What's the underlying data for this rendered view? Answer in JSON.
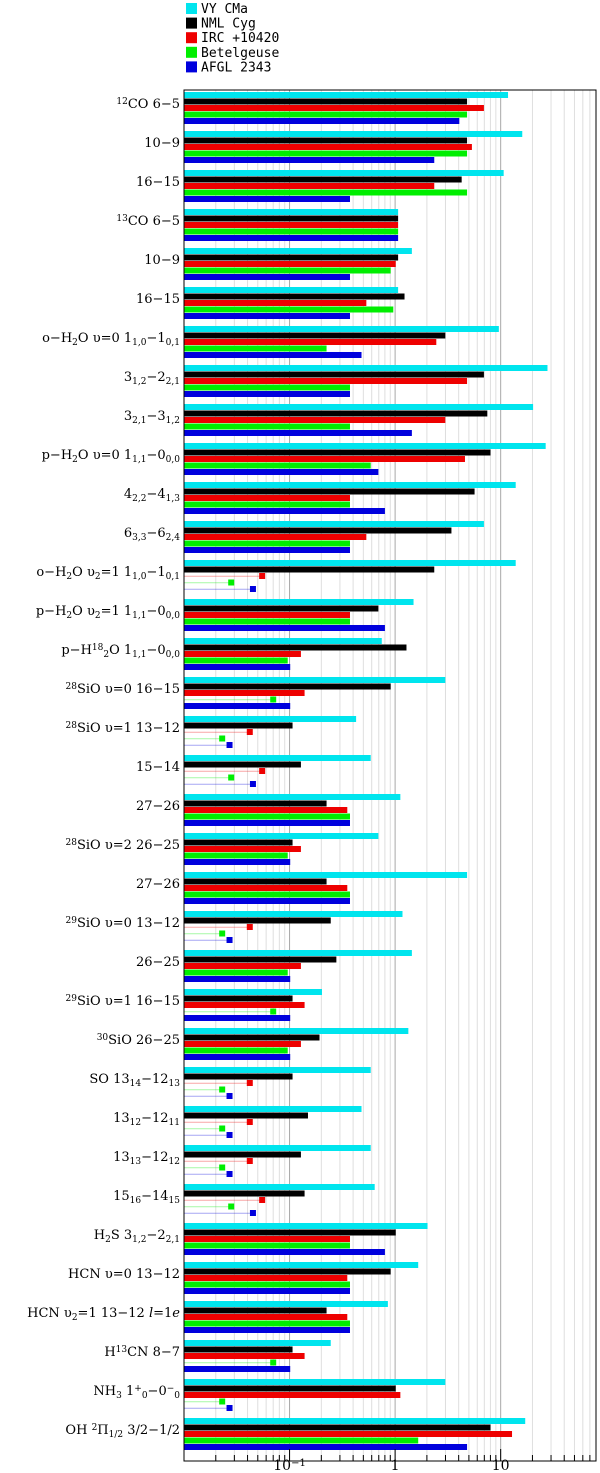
{
  "chart_data": {
    "type": "bar",
    "orientation": "horizontal",
    "x_scale": "log",
    "xlim": [
      0.01,
      80
    ],
    "x_ticks": [
      {
        "value": 0.1,
        "base": "10",
        "exp": "−1"
      },
      {
        "value": 1,
        "base": "1",
        "exp": ""
      },
      {
        "value": 10,
        "base": "10",
        "exp": ""
      }
    ],
    "legend": [
      {
        "name": "VY CMa",
        "color": "#00e5ee"
      },
      {
        "name": "NML Cyg",
        "color": "#000000"
      },
      {
        "name": "IRC +10420",
        "color": "#ee0000"
      },
      {
        "name": "Betelgeuse",
        "color": "#00ee00"
      },
      {
        "name": "AFGL 2343",
        "color": "#0000dd"
      }
    ],
    "categories": [
      {
        "label": [
          {
            "t": "12",
            "s": "sup"
          },
          {
            "t": "CO 6−5"
          }
        ],
        "vy": 11,
        "nml": 4.5,
        "irc": 6.5,
        "bet": 4.5,
        "afgl": 3.8
      },
      {
        "label": [
          {
            "t": "10−9"
          }
        ],
        "vy": 15,
        "nml": 4.5,
        "irc": 5,
        "bet": 4.5,
        "afgl": 2.2
      },
      {
        "label": [
          {
            "t": "16−15"
          }
        ],
        "vy": 10,
        "nml": 4,
        "irc": 2.2,
        "bet": 4.5,
        "afgl": 0.35
      },
      {
        "label": [
          {
            "t": "13",
            "s": "sup"
          },
          {
            "t": "CO 6−5"
          }
        ],
        "vy": 1.0,
        "nml": 1.0,
        "irc": 1.0,
        "bet": 1.0,
        "afgl": 1.0
      },
      {
        "label": [
          {
            "t": "10−9"
          }
        ],
        "vy": 1.35,
        "nml": 1.0,
        "irc": 0.95,
        "bet": 0.85,
        "afgl": 0.35
      },
      {
        "label": [
          {
            "t": "16−15"
          }
        ],
        "vy": 1.0,
        "nml": 1.15,
        "irc": 0.5,
        "bet": 0.9,
        "afgl": 0.35
      },
      {
        "label": [
          {
            "t": "o−H"
          },
          {
            "t": "2",
            "s": "sub"
          },
          {
            "t": "O υ=0 1"
          },
          {
            "t": "1,0",
            "s": "sub"
          },
          {
            "t": "−1"
          },
          {
            "t": "0,1",
            "s": "sub"
          }
        ],
        "vy": 9,
        "nml": 2.8,
        "irc": 2.3,
        "bet": 0.21,
        "afgl": 0.45
      },
      {
        "label": [
          {
            "t": "3"
          },
          {
            "t": "1,2",
            "s": "sub"
          },
          {
            "t": "−2"
          },
          {
            "t": "2,1",
            "s": "sub"
          }
        ],
        "vy": 26,
        "nml": 6.5,
        "irc": 4.5,
        "bet": 0.35,
        "afgl": 0.35
      },
      {
        "label": [
          {
            "t": "3"
          },
          {
            "t": "2,1",
            "s": "sub"
          },
          {
            "t": "−3"
          },
          {
            "t": "1,2",
            "s": "sub"
          }
        ],
        "vy": 19,
        "nml": 7,
        "irc": 2.8,
        "bet": 0.35,
        "afgl": 1.35
      },
      {
        "label": [
          {
            "t": "p−H"
          },
          {
            "t": "2",
            "s": "sub"
          },
          {
            "t": "O υ=0 1"
          },
          {
            "t": "1,1",
            "s": "sub"
          },
          {
            "t": "−0"
          },
          {
            "t": "0,0",
            "s": "sub"
          }
        ],
        "vy": 25,
        "nml": 7.5,
        "irc": 4.3,
        "bet": 0.55,
        "afgl": 0.65
      },
      {
        "label": [
          {
            "t": "4"
          },
          {
            "t": "2,2",
            "s": "sub"
          },
          {
            "t": "−4"
          },
          {
            "t": "1,3",
            "s": "sub"
          }
        ],
        "vy": 13,
        "nml": 5.3,
        "irc": 0.35,
        "bet": 0.35,
        "afgl": 0.75
      },
      {
        "label": [
          {
            "t": "6"
          },
          {
            "t": "3,3",
            "s": "sub"
          },
          {
            "t": "−6"
          },
          {
            "t": "2,4",
            "s": "sub"
          }
        ],
        "vy": 6.5,
        "nml": 3.2,
        "irc": 0.5,
        "bet": 0.35,
        "afgl": 0.35
      },
      {
        "label": [
          {
            "t": "o−H"
          },
          {
            "t": "2",
            "s": "sub"
          },
          {
            "t": "O υ"
          },
          {
            "t": "2",
            "s": "sub"
          },
          {
            "t": "=1 1"
          },
          {
            "t": "1,0",
            "s": "sub"
          },
          {
            "t": "−1"
          },
          {
            "t": "0,1",
            "s": "sub"
          }
        ],
        "vy": 13,
        "nml": 2.2,
        "irc": 0.055,
        "bet": 0.028,
        "afgl": 0.045
      },
      {
        "label": [
          {
            "t": "p−H"
          },
          {
            "t": "2",
            "s": "sub"
          },
          {
            "t": "O υ"
          },
          {
            "t": "2",
            "s": "sub"
          },
          {
            "t": "=1 1"
          },
          {
            "t": "1,1",
            "s": "sub"
          },
          {
            "t": "−0"
          },
          {
            "t": "0,0",
            "s": "sub"
          }
        ],
        "vy": 1.4,
        "nml": 0.65,
        "irc": 0.35,
        "bet": 0.35,
        "afgl": 0.75
      },
      {
        "label": [
          {
            "t": "p−H"
          },
          {
            "t": "18",
            "s": "sup"
          },
          {
            "t": "2",
            "s": "sub2"
          },
          {
            "t": "O 1"
          },
          {
            "t": "1,1",
            "s": "sub"
          },
          {
            "t": "−0"
          },
          {
            "t": "0,0",
            "s": "sub"
          }
        ],
        "vy": 0.7,
        "nml": 1.2,
        "irc": 0.12,
        "bet": 0.09,
        "afgl": 0.095
      },
      {
        "label": [
          {
            "t": "28",
            "s": "sup"
          },
          {
            "t": "SiO υ=0 16−15"
          }
        ],
        "vy": 2.8,
        "nml": 0.85,
        "irc": 0.13,
        "bet": 0.07,
        "afgl": 0.095
      },
      {
        "label": [
          {
            "t": "28",
            "s": "sup"
          },
          {
            "t": "SiO υ=1 13−12"
          }
        ],
        "vy": 0.4,
        "nml": 0.1,
        "irc": 0.042,
        "bet": 0.023,
        "afgl": 0.027
      },
      {
        "label": [
          {
            "t": "15−14"
          }
        ],
        "vy": 0.55,
        "nml": 0.12,
        "irc": 0.055,
        "bet": 0.028,
        "afgl": 0.045
      },
      {
        "label": [
          {
            "t": "27−26"
          }
        ],
        "vy": 1.05,
        "nml": 0.21,
        "irc": 0.33,
        "bet": 0.35,
        "afgl": 0.35
      },
      {
        "label": [
          {
            "t": "28",
            "s": "sup"
          },
          {
            "t": "SiO υ=2 26−25"
          }
        ],
        "vy": 0.65,
        "nml": 0.1,
        "irc": 0.12,
        "bet": 0.09,
        "afgl": 0.095
      },
      {
        "label": [
          {
            "t": "27−26"
          }
        ],
        "vy": 4.5,
        "nml": 0.21,
        "irc": 0.33,
        "bet": 0.35,
        "afgl": 0.35
      },
      {
        "label": [
          {
            "t": "29",
            "s": "sup"
          },
          {
            "t": "SiO υ=0 13−12"
          }
        ],
        "vy": 1.1,
        "nml": 0.23,
        "irc": 0.042,
        "bet": 0.023,
        "afgl": 0.027
      },
      {
        "label": [
          {
            "t": "26−25"
          }
        ],
        "vy": 1.35,
        "nml": 0.26,
        "irc": 0.12,
        "bet": 0.09,
        "afgl": 0.095
      },
      {
        "label": [
          {
            "t": "29",
            "s": "sup"
          },
          {
            "t": "SiO υ=1 16−15"
          }
        ],
        "vy": 0.19,
        "nml": 0.1,
        "irc": 0.13,
        "bet": 0.07,
        "afgl": 0.095
      },
      {
        "label": [
          {
            "t": "30",
            "s": "sup"
          },
          {
            "t": "SiO 26−25"
          }
        ],
        "vy": 1.25,
        "nml": 0.18,
        "irc": 0.12,
        "bet": 0.09,
        "afgl": 0.095
      },
      {
        "label": [
          {
            "t": "SO 13"
          },
          {
            "t": "14",
            "s": "sub"
          },
          {
            "t": "−12"
          },
          {
            "t": "13",
            "s": "sub"
          }
        ],
        "vy": 0.55,
        "nml": 0.1,
        "irc": 0.042,
        "bet": 0.023,
        "afgl": 0.027
      },
      {
        "label": [
          {
            "t": "13"
          },
          {
            "t": "12",
            "s": "sub"
          },
          {
            "t": "−12"
          },
          {
            "t": "11",
            "s": "sub"
          }
        ],
        "vy": 0.45,
        "nml": 0.14,
        "irc": 0.042,
        "bet": 0.023,
        "afgl": 0.027
      },
      {
        "label": [
          {
            "t": "13"
          },
          {
            "t": "13",
            "s": "sub"
          },
          {
            "t": "−12"
          },
          {
            "t": "12",
            "s": "sub"
          }
        ],
        "vy": 0.55,
        "nml": 0.12,
        "irc": 0.042,
        "bet": 0.023,
        "afgl": 0.027
      },
      {
        "label": [
          {
            "t": "15"
          },
          {
            "t": "16",
            "s": "sub"
          },
          {
            "t": "−14"
          },
          {
            "t": "15",
            "s": "sub"
          }
        ],
        "vy": 0.6,
        "nml": 0.13,
        "irc": 0.055,
        "bet": 0.028,
        "afgl": 0.045
      },
      {
        "label": [
          {
            "t": "H"
          },
          {
            "t": "2",
            "s": "sub"
          },
          {
            "t": "S 3"
          },
          {
            "t": "1,2",
            "s": "sub"
          },
          {
            "t": "−2"
          },
          {
            "t": "2,1",
            "s": "sub"
          }
        ],
        "vy": 1.9,
        "nml": 0.95,
        "irc": 0.35,
        "bet": 0.35,
        "afgl": 0.75
      },
      {
        "label": [
          {
            "t": "HCN υ=0 13−12"
          }
        ],
        "vy": 1.55,
        "nml": 0.85,
        "irc": 0.33,
        "bet": 0.35,
        "afgl": 0.35
      },
      {
        "label": [
          {
            "t": "HCN υ"
          },
          {
            "t": "2",
            "s": "sub"
          },
          {
            "t": "=1 13−12 "
          },
          {
            "t": "l",
            "i": true
          },
          {
            "t": "=1"
          },
          {
            "t": "e",
            "i": true
          }
        ],
        "vy": 0.8,
        "nml": 0.21,
        "irc": 0.33,
        "bet": 0.35,
        "afgl": 0.35
      },
      {
        "label": [
          {
            "t": "H"
          },
          {
            "t": "13",
            "s": "sup"
          },
          {
            "t": "CN 8−7"
          }
        ],
        "vy": 0.23,
        "nml": 0.1,
        "irc": 0.13,
        "bet": 0.07,
        "afgl": 0.095
      },
      {
        "label": [
          {
            "t": "NH"
          },
          {
            "t": "3",
            "s": "sub"
          },
          {
            "t": " 1"
          },
          {
            "t": "+",
            "s": "sup"
          },
          {
            "t": "0",
            "s": "sub2"
          },
          {
            "t": "−0"
          },
          {
            "t": "−",
            "s": "sup"
          },
          {
            "t": "0",
            "s": "sub2"
          }
        ],
        "vy": 2.8,
        "nml": 0.95,
        "irc": 1.05,
        "bet": 0.023,
        "afgl": 0.027
      },
      {
        "label": [
          {
            "t": "OH "
          },
          {
            "t": "2",
            "s": "sup"
          },
          {
            "t": "Π"
          },
          {
            "t": "1/2",
            "s": "sub"
          },
          {
            "t": " 3/2−1/2"
          }
        ],
        "vy": 16,
        "nml": 7.5,
        "irc": 12,
        "bet": 1.55,
        "afgl": 4.5
      }
    ]
  }
}
